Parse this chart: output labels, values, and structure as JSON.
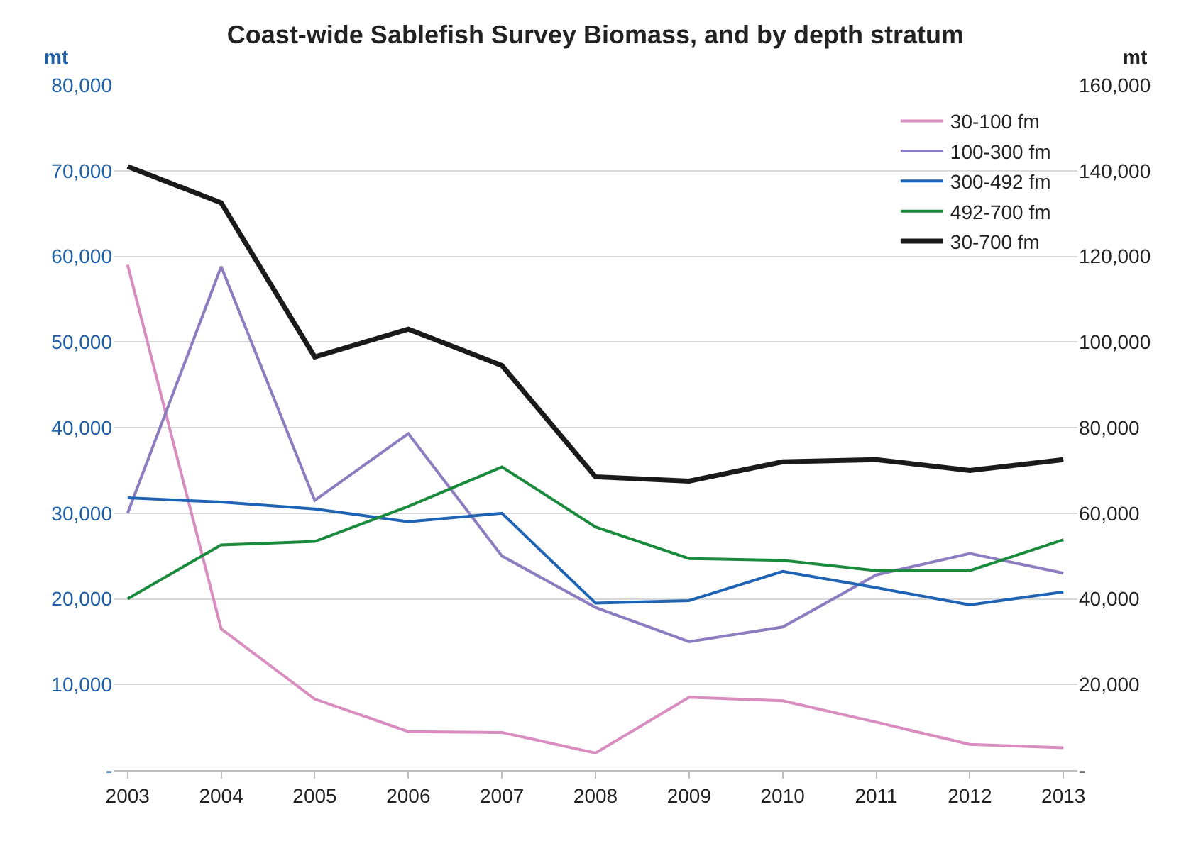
{
  "chart_data": {
    "type": "line",
    "title": "Coast-wide Sablefish Survey Biomass, and by depth stratum",
    "ylabel": "mt",
    "y2label": "mt",
    "categories": [
      "2003",
      "2004",
      "2005",
      "2006",
      "2007",
      "2008",
      "2009",
      "2010",
      "2011",
      "2012",
      "2013"
    ],
    "series": [
      {
        "name": "30-100 fm",
        "color": "#d98cbf",
        "values": [
          59000,
          16500,
          8300,
          4500,
          4400,
          2000,
          8500,
          8100,
          5600,
          3000,
          2600
        ]
      },
      {
        "name": "100-300 fm",
        "color": "#8c7cc0",
        "values": [
          30000,
          58800,
          31500,
          39300,
          25000,
          19000,
          15000,
          16700,
          22800,
          25300,
          23000
        ]
      },
      {
        "name": "300-492 fm",
        "color": "#1f63b5",
        "values": [
          31800,
          31300,
          30500,
          29000,
          30000,
          19500,
          19800,
          23200,
          21300,
          19300,
          20800
        ]
      },
      {
        "name": "492-700 fm",
        "color": "#1a8a3c",
        "values": [
          20000,
          26300,
          26700,
          30800,
          35400,
          28400,
          24700,
          24500,
          23300,
          23300,
          26900
        ]
      },
      {
        "name": "30-700 fm",
        "color": "#1a1a1a",
        "axis": "y2",
        "values": [
          141000,
          132500,
          96500,
          103000,
          94500,
          68500,
          67500,
          72000,
          72500,
          70000,
          72500
        ]
      }
    ],
    "ylim": [
      0,
      80000
    ],
    "yticks": [
      {
        "value": 0,
        "label": "-"
      },
      {
        "value": 10000,
        "label": "10,000"
      },
      {
        "value": 20000,
        "label": "20,000"
      },
      {
        "value": 30000,
        "label": "30,000"
      },
      {
        "value": 40000,
        "label": "40,000"
      },
      {
        "value": 50000,
        "label": "50,000"
      },
      {
        "value": 60000,
        "label": "60,000"
      },
      {
        "value": 70000,
        "label": "70,000"
      },
      {
        "value": 80000,
        "label": "80,000"
      }
    ],
    "y2lim": [
      0,
      160000
    ],
    "y2ticks": [
      {
        "value": 0,
        "label": "-"
      },
      {
        "value": 20000,
        "label": "20,000"
      },
      {
        "value": 40000,
        "label": "40,000"
      },
      {
        "value": 60000,
        "label": "60,000"
      },
      {
        "value": 80000,
        "label": "80,000"
      },
      {
        "value": 100000,
        "label": "100,000"
      },
      {
        "value": 120000,
        "label": "120,000"
      },
      {
        "value": 140000,
        "label": "140,000"
      },
      {
        "value": 160000,
        "label": "160,000"
      }
    ],
    "grid": "y",
    "legend": "top right",
    "marker": "none",
    "line_style": "solid"
  }
}
